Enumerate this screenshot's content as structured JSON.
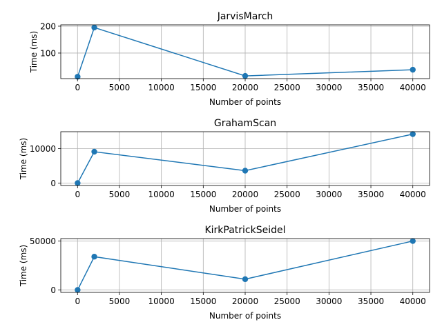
{
  "colors": {
    "series": "#1f77b4",
    "grid": "#b0b0b0",
    "axes": "#000000"
  },
  "chart_data": [
    {
      "type": "line",
      "title": "JarvisMarch",
      "xlabel": "Number of points",
      "ylabel": "Time (ms)",
      "x": [
        10,
        2000,
        20000,
        40000
      ],
      "series": [
        {
          "values": [
            12,
            195,
            15,
            38
          ]
        }
      ],
      "xlim": [
        -2000,
        42000
      ],
      "ylim": [
        5,
        205
      ],
      "xticks": [
        0,
        5000,
        10000,
        15000,
        20000,
        25000,
        30000,
        35000,
        40000
      ],
      "yticks": [
        100,
        200
      ],
      "grid": true,
      "markers": "circle"
    },
    {
      "type": "line",
      "title": "GrahamScan",
      "xlabel": "Number of points",
      "ylabel": "Time (ms)",
      "x": [
        10,
        2000,
        20000,
        40000
      ],
      "series": [
        {
          "values": [
            0,
            9100,
            3600,
            14200
          ]
        }
      ],
      "xlim": [
        -2000,
        42000
      ],
      "ylim": [
        -700,
        14900
      ],
      "xticks": [
        0,
        5000,
        10000,
        15000,
        20000,
        25000,
        30000,
        35000,
        40000
      ],
      "yticks": [
        0,
        10000
      ],
      "grid": true,
      "markers": "circle"
    },
    {
      "type": "line",
      "title": "KirkPatrickSeidel",
      "xlabel": "Number of points",
      "ylabel": "Time (ms)",
      "x": [
        10,
        2000,
        20000,
        40000
      ],
      "series": [
        {
          "values": [
            0,
            34000,
            11000,
            50000
          ]
        }
      ],
      "xlim": [
        -2000,
        42000
      ],
      "ylim": [
        -2500,
        52500
      ],
      "xticks": [
        0,
        5000,
        10000,
        15000,
        20000,
        25000,
        30000,
        35000,
        40000
      ],
      "yticks": [
        0,
        50000
      ],
      "grid": true,
      "markers": "circle"
    }
  ]
}
